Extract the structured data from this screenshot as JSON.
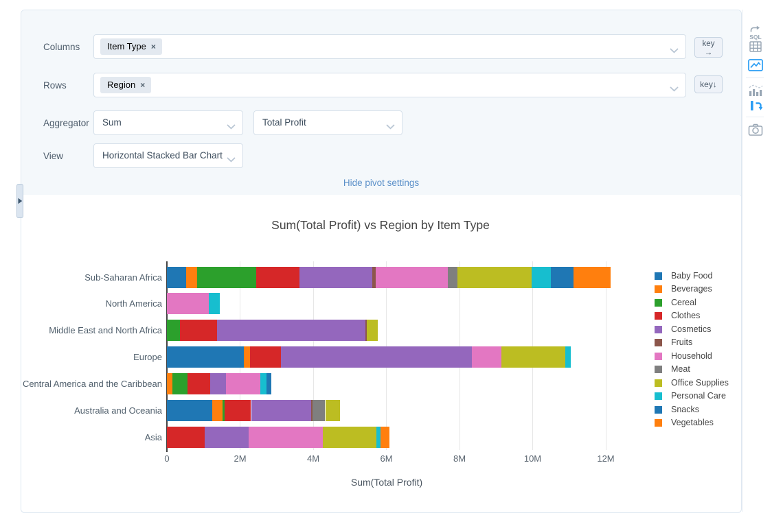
{
  "pivot_settings": {
    "columns": {
      "label": "Columns",
      "tags": [
        "Item Type"
      ],
      "remove_icon": "×"
    },
    "rows": {
      "label": "Rows",
      "tags": [
        "Region"
      ],
      "remove_icon": "×"
    },
    "aggregator": {
      "label": "Aggregator",
      "value": "Sum",
      "field": "Total Profit"
    },
    "view": {
      "label": "View",
      "value": "Horizontal Stacked Bar Chart"
    },
    "hide_link": "Hide pivot settings",
    "key_buttons": [
      {
        "label": "key",
        "arrow": "→"
      },
      {
        "label": "key",
        "arrow": "↓"
      }
    ]
  },
  "toolbar": {
    "sql_label": "SQL",
    "icons": [
      "sql-query",
      "data-grid",
      "chart-image",
      "bar-chart",
      "pivot",
      "camera"
    ],
    "active_color": "#2a9df4",
    "inactive_color": "#98a6b4"
  },
  "chart_data": {
    "type": "bar",
    "orientation": "horizontal",
    "stacked": true,
    "title": "Sum(Total Profit) vs Region by Item Type",
    "xlabel": "Sum(Total Profit)",
    "ylabel": "",
    "values_unit": "millions (estimated from bar lengths)",
    "xlim_millions": [
      0,
      12.55
    ],
    "grid": true,
    "legend_position": "right",
    "x_ticks": [
      {
        "value": 0,
        "label": "0"
      },
      {
        "value": 2,
        "label": "2M"
      },
      {
        "value": 4,
        "label": "4M"
      },
      {
        "value": 6,
        "label": "6M"
      },
      {
        "value": 8,
        "label": "8M"
      },
      {
        "value": 10,
        "label": "10M"
      },
      {
        "value": 12,
        "label": "12M"
      }
    ],
    "categories": [
      "Sub-Saharan Africa",
      "North America",
      "Middle East and North Africa",
      "Europe",
      "Central America and the Caribbean",
      "Australia and Oceania",
      "Asia"
    ],
    "series": [
      {
        "name": "Baby Food",
        "color": "#1f77b4",
        "values_millions": [
          0.52,
          0,
          0,
          2.11,
          0,
          1.23,
          0
        ]
      },
      {
        "name": "Beverages",
        "color": "#ff7f0e",
        "values_millions": [
          0.3,
          0,
          0,
          0.16,
          0.14,
          0.29,
          0
        ]
      },
      {
        "name": "Cereal",
        "color": "#2ca02c",
        "values_millions": [
          1.62,
          0,
          0.35,
          0,
          0.43,
          0.05,
          0
        ]
      },
      {
        "name": "Clothes",
        "color": "#d62728",
        "values_millions": [
          1.18,
          0,
          1.02,
          0.85,
          0.62,
          0.73,
          1.03
        ]
      },
      {
        "name": "Cosmetics",
        "color": "#9467bd",
        "values_millions": [
          2.0,
          0,
          4.06,
          5.22,
          0.42,
          1.65,
          1.21
        ]
      },
      {
        "name": "Fruits",
        "color": "#8c564b",
        "values_millions": [
          0.08,
          0,
          0.04,
          0,
          0,
          0.03,
          0
        ]
      },
      {
        "name": "Household",
        "color": "#e377c2",
        "values_millions": [
          1.98,
          1.15,
          0,
          0.8,
          0.95,
          0,
          2.02
        ]
      },
      {
        "name": "Meat",
        "color": "#7f7f7f",
        "values_millions": [
          0.26,
          0,
          0,
          0,
          0,
          0.35,
          0
        ]
      },
      {
        "name": "Office Supplies",
        "color": "#bcbd22",
        "values_millions": [
          2.04,
          0,
          0.29,
          1.76,
          0,
          0.4,
          1.47
        ]
      },
      {
        "name": "Personal Care",
        "color": "#17becf",
        "values_millions": [
          0.51,
          0.3,
          0,
          0.14,
          0.17,
          0,
          0.11
        ]
      },
      {
        "name": "Snacks",
        "color": "#1f77b4",
        "values_millions": [
          0.63,
          0,
          0,
          0,
          0.12,
          0,
          0
        ]
      },
      {
        "name": "Vegetables",
        "color": "#ff7f0e",
        "values_millions": [
          1.02,
          0,
          0,
          0,
          0,
          0,
          0.24
        ]
      }
    ]
  }
}
